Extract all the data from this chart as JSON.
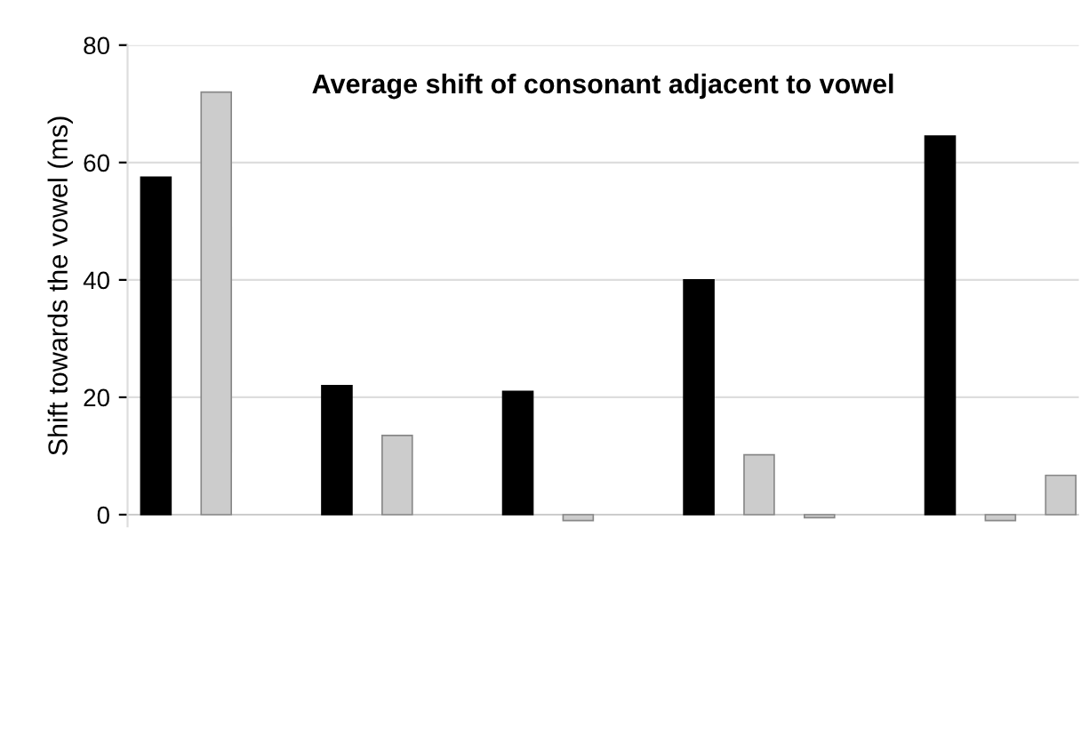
{
  "chart_data": {
    "type": "bar",
    "title": "Average shift of consonant adjacent to vowel",
    "ylabel": "Shift towards the vowel (ms)",
    "categories": [
      null,
      null,
      null,
      null,
      null,
      null,
      null,
      null,
      null,
      null,
      null,
      null,
      null,
      null,
      null,
      null
    ],
    "values": [
      57.5,
      72,
      null,
      22,
      13.5,
      null,
      21,
      -1,
      null,
      40,
      10.2,
      -0.5,
      null,
      64.5,
      -1,
      6.7
    ],
    "colors": [
      "#000000",
      "#cccccc",
      "#cccccc",
      "#000000",
      "#cccccc",
      "#cccccc",
      "#000000",
      "#cccccc",
      "#cccccc",
      "#000000",
      "#cccccc",
      "#cccccc",
      "#cccccc",
      "#000000",
      "#cccccc",
      "#cccccc"
    ],
    "ylim": [
      -2,
      80
    ],
    "yticks": [
      0,
      20,
      40,
      60,
      80
    ],
    "grid": "y"
  }
}
